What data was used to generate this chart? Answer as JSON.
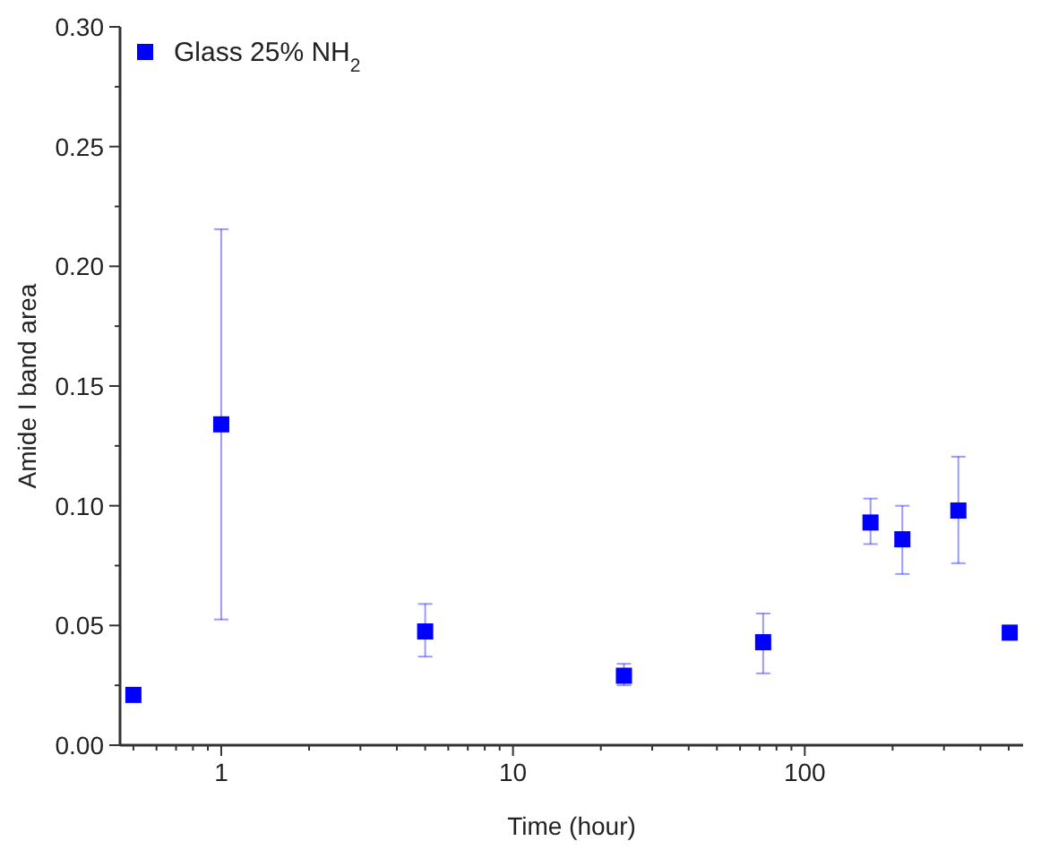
{
  "chart_data": {
    "type": "scatter",
    "xlabel": "Time (hour)",
    "ylabel": "Amide I band area",
    "log": "x",
    "marker": "square",
    "legend": "top left",
    "grid": false,
    "x": [
      0.5,
      1,
      5,
      24,
      72,
      168,
      216,
      336,
      504
    ],
    "series": [
      {
        "name": "Glass 25% NH$_{2}$",
        "color": "#0000ff",
        "values": [
          0.021,
          0.134,
          0.0475,
          0.029,
          0.043,
          0.093,
          0.086,
          0.098,
          0.047
        ],
        "errors": [
          null,
          [
            0.0525,
            0.2155
          ],
          [
            0.037,
            0.059
          ],
          [
            0.025,
            0.034
          ],
          [
            0.03,
            0.055
          ],
          [
            0.084,
            0.103
          ],
          [
            0.0715,
            0.1
          ],
          [
            0.076,
            0.1205
          ],
          null
        ]
      }
    ],
    "xlim": [
      0.45,
      560
    ],
    "xticks": [
      {
        "value": 0.5,
        "label": null
      },
      {
        "value": 0.6,
        "label": null
      },
      {
        "value": 0.7,
        "label": null
      },
      {
        "value": 0.8,
        "label": null
      },
      {
        "value": 0.9,
        "label": null
      },
      1,
      {
        "value": 2,
        "label": null
      },
      {
        "value": 3,
        "label": null
      },
      {
        "value": 4,
        "label": null
      },
      {
        "value": 5,
        "label": null
      },
      {
        "value": 6,
        "label": null
      },
      {
        "value": 7,
        "label": null
      },
      {
        "value": 8,
        "label": null
      },
      {
        "value": 9,
        "label": null
      },
      10,
      {
        "value": 20,
        "label": null
      },
      {
        "value": 30,
        "label": null
      },
      {
        "value": 40,
        "label": null
      },
      {
        "value": 50,
        "label": null
      },
      {
        "value": 60,
        "label": null
      },
      {
        "value": 70,
        "label": null
      },
      {
        "value": 80,
        "label": null
      },
      {
        "value": 90,
        "label": null
      },
      100,
      {
        "value": 200,
        "label": null
      },
      {
        "value": 300,
        "label": null
      },
      {
        "value": 400,
        "label": null
      },
      {
        "value": 500,
        "label": null
      }
    ],
    "ylim": [
      0,
      0.3
    ],
    "yticks": [
      {
        "value": 0,
        "label": "0.00"
      },
      {
        "value": 0.025,
        "label": null
      },
      {
        "value": 0.05,
        "label": "0.05"
      },
      {
        "value": 0.075,
        "label": null
      },
      {
        "value": 0.1,
        "label": "0.10"
      },
      {
        "value": 0.125,
        "label": null
      },
      {
        "value": 0.15,
        "label": "0.15"
      },
      {
        "value": 0.175,
        "label": null
      },
      {
        "value": 0.2,
        "label": "0.20"
      },
      {
        "value": 0.225,
        "label": null
      },
      {
        "value": 0.25,
        "label": "0.25"
      },
      {
        "value": 0.275,
        "label": null
      },
      {
        "value": 0.3,
        "label": "0.30"
      }
    ]
  }
}
